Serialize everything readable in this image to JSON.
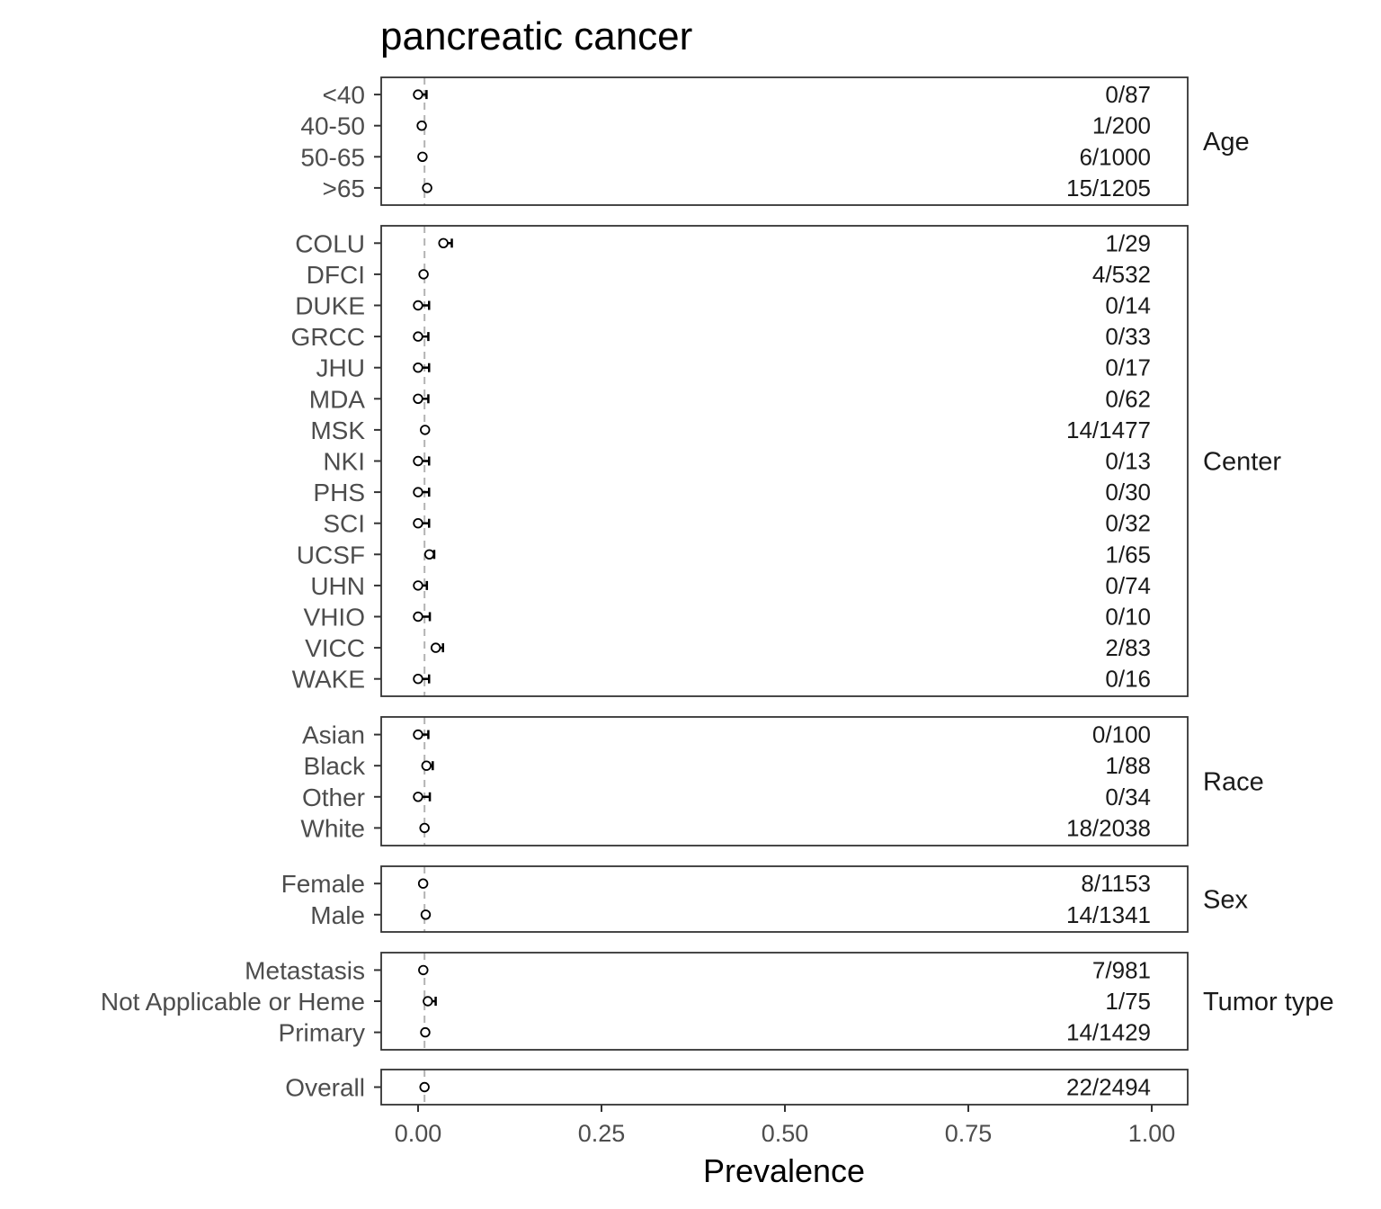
{
  "chart_data": {
    "type": "scatter",
    "title": "pancreatic cancer",
    "xlabel": "Prevalence",
    "ylabel": "",
    "xlim": [
      0,
      1
    ],
    "x_ticks": [
      "0.00",
      "0.25",
      "0.50",
      "0.75",
      "1.00"
    ],
    "x_tick_values": [
      0,
      0.25,
      0.5,
      0.75,
      1
    ],
    "reference_line": 0.0088,
    "grid": false,
    "facets": [
      {
        "name": "Age",
        "rows": [
          {
            "label": "<40",
            "count": "0/87",
            "estimate": 0.0,
            "upper": 0.0115
          },
          {
            "label": "40-50",
            "count": "1/200",
            "estimate": 0.005,
            "upper": 0.0075
          },
          {
            "label": "50-65",
            "count": "6/1000",
            "estimate": 0.006,
            "upper": 0.007
          },
          {
            "label": ">65",
            "count": "15/1205",
            "estimate": 0.0124,
            "upper": 0.014
          }
        ]
      },
      {
        "name": "Center",
        "rows": [
          {
            "label": "COLU",
            "count": "1/29",
            "estimate": 0.0345,
            "upper": 0.046
          },
          {
            "label": "DFCI",
            "count": "4/532",
            "estimate": 0.0075,
            "upper": 0.009
          },
          {
            "label": "DUKE",
            "count": "0/14",
            "estimate": 0.0,
            "upper": 0.015
          },
          {
            "label": "GRCC",
            "count": "0/33",
            "estimate": 0.0,
            "upper": 0.014
          },
          {
            "label": "JHU",
            "count": "0/17",
            "estimate": 0.0,
            "upper": 0.015
          },
          {
            "label": "MDA",
            "count": "0/62",
            "estimate": 0.0,
            "upper": 0.014
          },
          {
            "label": "MSK",
            "count": "14/1477",
            "estimate": 0.0095,
            "upper": 0.011
          },
          {
            "label": "NKI",
            "count": "0/13",
            "estimate": 0.0,
            "upper": 0.015
          },
          {
            "label": "PHS",
            "count": "0/30",
            "estimate": 0.0,
            "upper": 0.015
          },
          {
            "label": "SCI",
            "count": "0/32",
            "estimate": 0.0,
            "upper": 0.015
          },
          {
            "label": "UCSF",
            "count": "1/65",
            "estimate": 0.0154,
            "upper": 0.022
          },
          {
            "label": "UHN",
            "count": "0/74",
            "estimate": 0.0,
            "upper": 0.012
          },
          {
            "label": "VHIO",
            "count": "0/10",
            "estimate": 0.0,
            "upper": 0.016
          },
          {
            "label": "VICC",
            "count": "2/83",
            "estimate": 0.0241,
            "upper": 0.034
          },
          {
            "label": "WAKE",
            "count": "0/16",
            "estimate": 0.0,
            "upper": 0.015
          }
        ]
      },
      {
        "name": "Race",
        "rows": [
          {
            "label": "Asian",
            "count": "0/100",
            "estimate": 0.0,
            "upper": 0.014
          },
          {
            "label": "Black",
            "count": "1/88",
            "estimate": 0.0114,
            "upper": 0.02
          },
          {
            "label": "Other",
            "count": "0/34",
            "estimate": 0.0,
            "upper": 0.016
          },
          {
            "label": "White",
            "count": "18/2038",
            "estimate": 0.0088,
            "upper": 0.0095
          }
        ]
      },
      {
        "name": "Sex",
        "rows": [
          {
            "label": "Female",
            "count": "8/1153",
            "estimate": 0.0069,
            "upper": 0.0085
          },
          {
            "label": "Male",
            "count": "14/1341",
            "estimate": 0.0104,
            "upper": 0.012
          }
        ]
      },
      {
        "name": "Tumor type",
        "rows": [
          {
            "label": "Metastasis",
            "count": "7/981",
            "estimate": 0.0071,
            "upper": 0.0085
          },
          {
            "label": "Not Applicable or Heme",
            "count": "1/75",
            "estimate": 0.0133,
            "upper": 0.024
          },
          {
            "label": "Primary",
            "count": "14/1429",
            "estimate": 0.0098,
            "upper": 0.011
          }
        ]
      },
      {
        "name": "",
        "rows": [
          {
            "label": "Overall",
            "count": "22/2494",
            "estimate": 0.0088,
            "upper": 0.0095
          }
        ]
      }
    ],
    "colors": {
      "panel_border": "#333333",
      "point_stroke": "#000000",
      "reference_line": "#b3b3b3",
      "axis_text": "#4d4d4d",
      "strip_text": "#1a1a1a"
    }
  }
}
